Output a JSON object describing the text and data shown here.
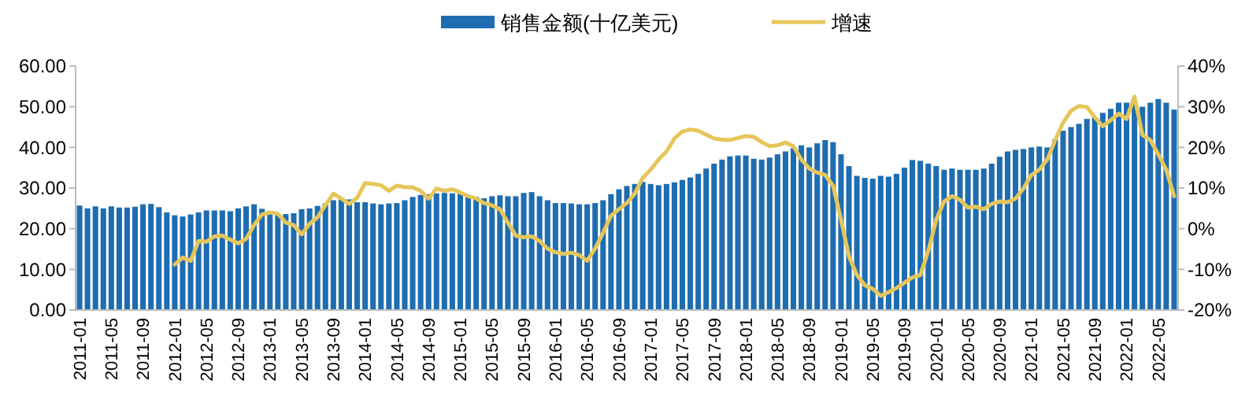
{
  "chart_data": {
    "type": "bar",
    "legend": "top",
    "categories": [
      "2011-01",
      null,
      null,
      null,
      "2011-05",
      null,
      null,
      null,
      "2011-09",
      null,
      null,
      null,
      "2012-01",
      null,
      null,
      null,
      "2012-05",
      null,
      null,
      null,
      "2012-09",
      null,
      null,
      null,
      "2013-01",
      null,
      null,
      null,
      "2013-05",
      null,
      null,
      null,
      "2013-09",
      null,
      null,
      null,
      "2014-01",
      null,
      null,
      null,
      "2014-05",
      null,
      null,
      null,
      "2014-09",
      null,
      null,
      null,
      "2015-01",
      null,
      null,
      null,
      "2015-05",
      null,
      null,
      null,
      "2015-09",
      null,
      null,
      null,
      "2016-01",
      null,
      null,
      null,
      "2016-05",
      null,
      null,
      null,
      "2016-09",
      null,
      null,
      null,
      "2017-01",
      null,
      null,
      null,
      "2017-05",
      null,
      null,
      null,
      "2017-09",
      null,
      null,
      null,
      "2018-01",
      null,
      null,
      null,
      "2018-05",
      null,
      null,
      null,
      "2018-09",
      null,
      null,
      null,
      "2019-01",
      null,
      null,
      null,
      "2019-05",
      null,
      null,
      null,
      "2019-09",
      null,
      null,
      null,
      "2020-01",
      null,
      null,
      null,
      "2020-05",
      null,
      null,
      null,
      "2020-09",
      null,
      null,
      null,
      "2021-01",
      null,
      null,
      null,
      "2021-05",
      null,
      null,
      null,
      "2021-09",
      null,
      null,
      null,
      "2022-01",
      null,
      null,
      null,
      "2022-05",
      null,
      null
    ],
    "series": [
      {
        "name": "销售金额(十亿美元)",
        "color": "#1f6db0",
        "values": [
          25.7,
          25.0,
          25.5,
          25.0,
          25.5,
          25.2,
          25.2,
          25.4,
          26.0,
          26.1,
          25.3,
          24.0,
          23.3,
          23.0,
          23.5,
          24.0,
          24.5,
          24.5,
          24.5,
          24.3,
          25.0,
          25.5,
          26.0,
          24.9,
          24.0,
          23.4,
          23.6,
          23.8,
          24.8,
          25.0,
          25.6,
          26.2,
          27.0,
          27.2,
          27.2,
          26.5,
          26.5,
          26.2,
          26.0,
          26.2,
          26.3,
          27.0,
          27.8,
          28.3,
          28.5,
          28.7,
          28.8,
          28.7,
          28.6,
          28.3,
          27.8,
          27.5,
          28.0,
          28.2,
          28.0,
          28.0,
          28.8,
          29.0,
          28.0,
          27.0,
          26.3,
          26.3,
          26.2,
          26.0,
          26.0,
          26.3,
          27.0,
          28.5,
          29.7,
          30.5,
          31.0,
          31.5,
          31.0,
          30.7,
          31.0,
          31.4,
          32.0,
          32.6,
          33.5,
          34.8,
          36.0,
          37.0,
          37.8,
          38.0,
          38.0,
          37.2,
          37.0,
          37.5,
          38.3,
          39.0,
          39.8,
          40.5,
          40.0,
          41.0,
          41.8,
          41.3,
          38.3,
          35.4,
          33.0,
          32.5,
          32.3,
          33.0,
          32.8,
          33.5,
          35.0,
          36.9,
          36.7,
          36.0,
          35.4,
          34.5,
          34.8,
          34.5,
          34.5,
          34.5,
          34.8,
          36.0,
          37.7,
          39.0,
          39.4,
          39.6,
          40.0,
          40.2,
          40.0,
          42.0,
          44.1,
          45.0,
          45.8,
          47.0,
          47.4,
          48.5,
          49.5,
          51.0,
          51.0,
          51.0,
          50.0,
          51.0,
          51.9,
          51.0,
          49.3
        ]
      },
      {
        "name": "增速",
        "type": "line",
        "axis": "y2",
        "color": "#e6c65a",
        "values": [
          null,
          null,
          null,
          null,
          null,
          null,
          null,
          null,
          null,
          null,
          null,
          null,
          -8.8,
          -7.1,
          -7.9,
          -3.0,
          -3.2,
          -1.9,
          -1.7,
          -2.7,
          -3.6,
          -2.5,
          0.9,
          3.5,
          4.0,
          3.7,
          1.5,
          0.9,
          -1.4,
          1.2,
          2.8,
          5.8,
          8.6,
          7.4,
          6.1,
          7.6,
          11.2,
          11.0,
          10.7,
          9.3,
          10.6,
          10.2,
          10.2,
          9.3,
          7.4,
          9.9,
          9.3,
          9.7,
          8.9,
          8.0,
          7.4,
          6.3,
          5.7,
          4.8,
          1.5,
          -1.7,
          -2.1,
          -1.9,
          -3.0,
          -4.9,
          -5.8,
          -6.2,
          -5.9,
          -6.5,
          -7.9,
          -4.9,
          -1.0,
          3.2,
          4.8,
          6.3,
          8.6,
          12.5,
          14.5,
          17.0,
          19.0,
          22.2,
          23.9,
          24.4,
          24.1,
          23.1,
          22.2,
          21.9,
          21.8,
          22.3,
          22.8,
          22.6,
          21.3,
          20.3,
          20.5,
          21.2,
          20.3,
          17.0,
          14.8,
          13.8,
          13.2,
          10.6,
          2.2,
          -6.8,
          -11.4,
          -13.9,
          -14.8,
          -16.5,
          -15.6,
          -14.6,
          -13.3,
          -12.0,
          -11.4,
          -5.5,
          2.2,
          6.7,
          8.0,
          7.1,
          5.2,
          5.4,
          4.8,
          6.1,
          6.7,
          6.5,
          7.4,
          9.9,
          13.2,
          14.5,
          17.0,
          21.8,
          26.1,
          29.0,
          30.2,
          29.9,
          27.4,
          25.2,
          26.7,
          28.3,
          27.0,
          32.5,
          23.1,
          21.8,
          18.3,
          14.5,
          8.0
        ]
      }
    ],
    "ylim": [
      0,
      60
    ],
    "yticks": [
      {
        "value": 0,
        "label": "0.00"
      },
      {
        "value": 10,
        "label": "10.00"
      },
      {
        "value": 20,
        "label": "20.00"
      },
      {
        "value": 30,
        "label": "30.00"
      },
      {
        "value": 40,
        "label": "40.00"
      },
      {
        "value": 50,
        "label": "50.00"
      },
      {
        "value": 60,
        "label": "60.00"
      }
    ],
    "y2lim": [
      -20,
      40
    ],
    "y2ticks": [
      {
        "value": -20,
        "label": "-20%"
      },
      {
        "value": -10,
        "label": "-10%"
      },
      {
        "value": 0,
        "label": "0%"
      },
      {
        "value": 10,
        "label": "10%"
      },
      {
        "value": 20,
        "label": "20%"
      },
      {
        "value": 30,
        "label": "30%"
      },
      {
        "value": 40,
        "label": "40%"
      }
    ]
  }
}
